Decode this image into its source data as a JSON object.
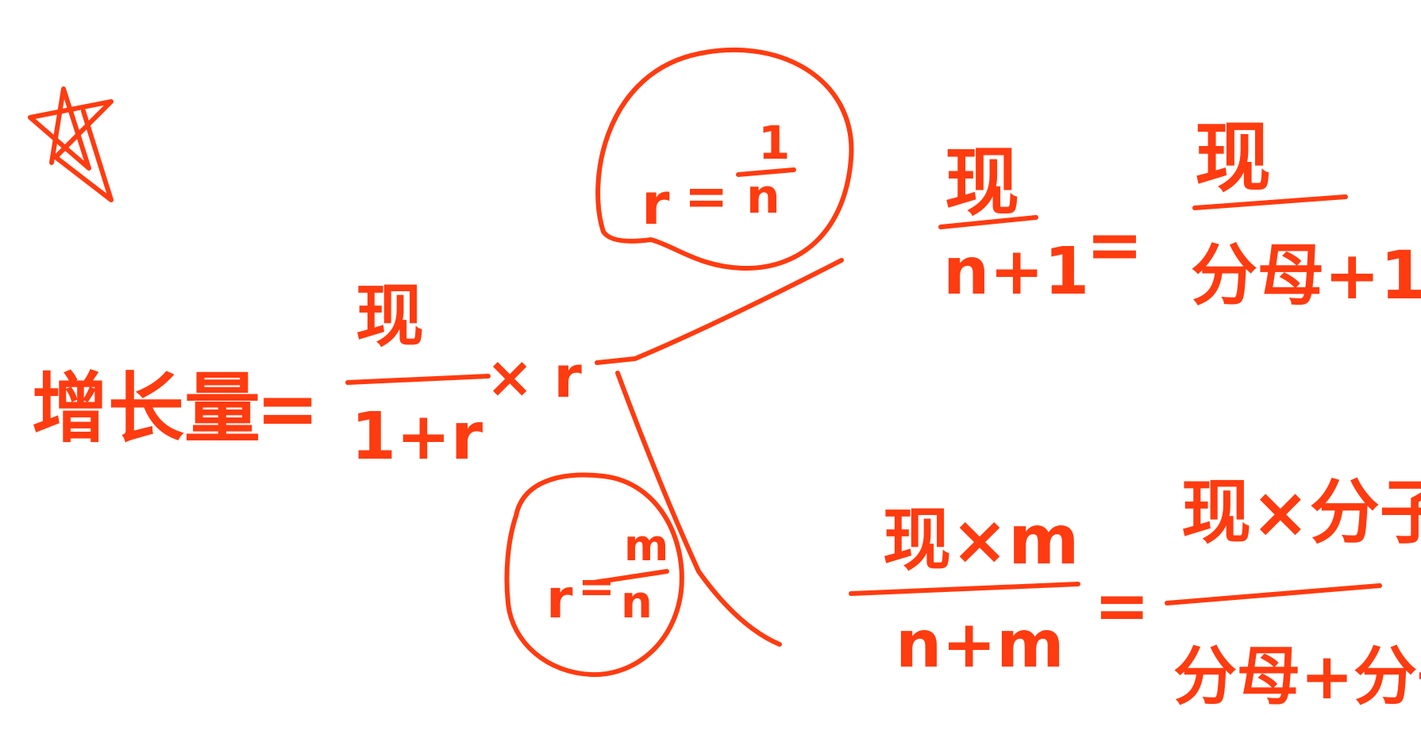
{
  "ink_color": "#ff3b10",
  "background": "#ffffff",
  "star_icon": "star-icon",
  "main_formula": {
    "lhs": "增长量",
    "eq": "=",
    "numerator": "现",
    "denominator": "1+r",
    "times": "× r"
  },
  "top_branch": {
    "circle_formula": {
      "r": "r",
      "eq": "=",
      "numerator": "1",
      "denominator": "n"
    },
    "result": {
      "left_numerator": "现",
      "left_denominator": "n+1",
      "eq": "=",
      "right_numerator": "现",
      "right_denominator": "分母+1"
    }
  },
  "bottom_branch": {
    "circle_formula": {
      "r": "r",
      "eq": "=",
      "numerator": "m",
      "denominator": "n"
    },
    "result": {
      "left_numerator": "现×m",
      "left_denominator": "n+m",
      "eq": "=",
      "right_numerator": "现×分子",
      "right_denominator": "分母+分子"
    }
  }
}
